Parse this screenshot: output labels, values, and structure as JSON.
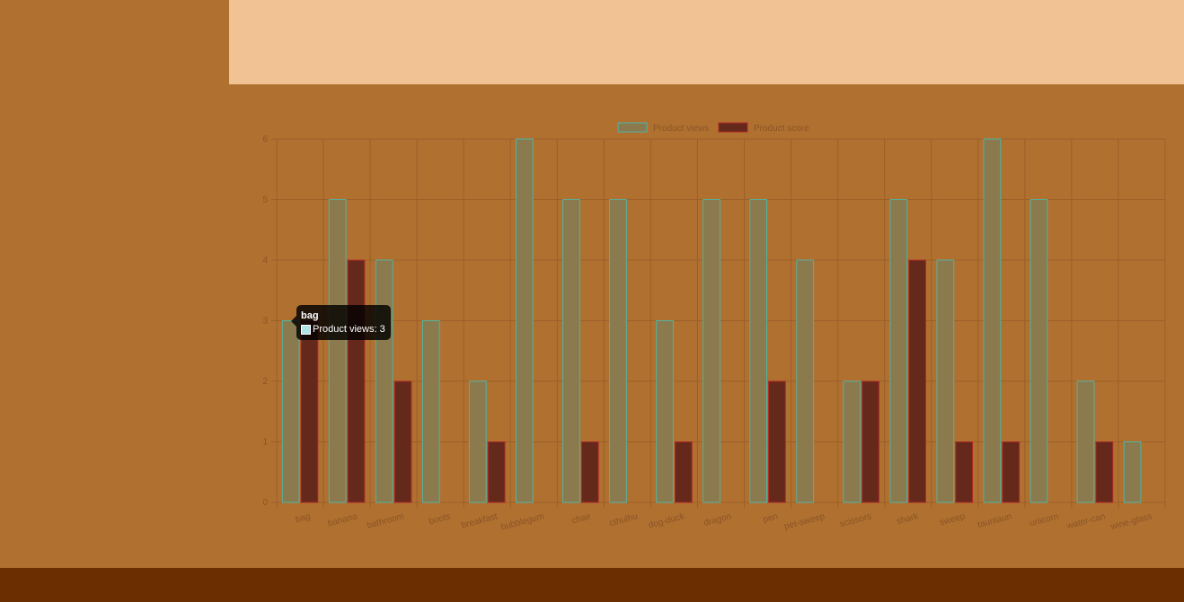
{
  "colors": {
    "background": "#b07030",
    "header_panel": "#f1c294",
    "footer_bar": "#6a2e00",
    "views_fill": "#8a7a4e",
    "views_border": "#4fb3a4",
    "score_fill": "#65291b",
    "score_border": "#b02828",
    "grid": "#9b6028",
    "axis_text": "#8a5526"
  },
  "tooltip": {
    "title": "bag",
    "label": "Product views: 3"
  },
  "chart_data": {
    "type": "bar",
    "categories": [
      "bag",
      "banana",
      "bathroom",
      "boots",
      "breakfast",
      "bubblegum",
      "chair",
      "cthulhu",
      "dog-duck",
      "dragon",
      "pen",
      "pet-sweep",
      "scissors",
      "shark",
      "sweep",
      "tauntaun",
      "unicorn",
      "water-can",
      "wine-glass"
    ],
    "series": [
      {
        "name": "Product views",
        "values": [
          3,
          5,
          4,
          3,
          2,
          6,
          5,
          5,
          3,
          5,
          5,
          4,
          2,
          5,
          4,
          6,
          5,
          2,
          1
        ]
      },
      {
        "name": "Product score",
        "values": [
          3,
          4,
          2,
          0,
          1,
          0,
          1,
          0,
          1,
          0,
          2,
          0,
          2,
          4,
          1,
          1,
          0,
          1,
          0
        ]
      }
    ],
    "ylim": [
      0,
      6
    ],
    "yticks": [
      "0",
      "1",
      "2",
      "3",
      "4",
      "5",
      "6"
    ],
    "grid": true,
    "legend": "top-center"
  }
}
